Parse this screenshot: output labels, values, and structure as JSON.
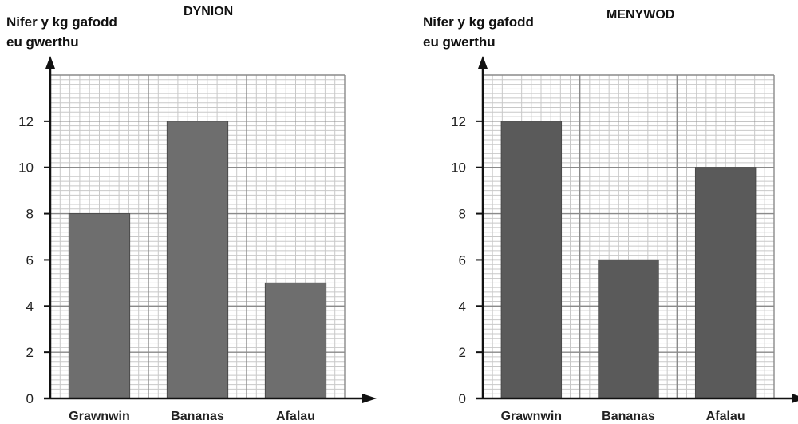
{
  "chart_data": [
    {
      "type": "bar",
      "title": "DYNION",
      "ylabel": [
        "Nifer y kg gafodd",
        "eu gwerthu"
      ],
      "categories": [
        "Grawnwin",
        "Bananas",
        "Afalau"
      ],
      "values": [
        8,
        12,
        5
      ],
      "yticks": [
        "0",
        "2",
        "4",
        "6",
        "8",
        "10",
        "12"
      ],
      "ylim": [
        0,
        14
      ],
      "grid": true,
      "bar_color": "#6e6e6e"
    },
    {
      "type": "bar",
      "title": "MENYWOD",
      "ylabel": [
        "Nifer y kg gafodd",
        "eu gwerthu"
      ],
      "categories": [
        "Grawnwin",
        "Bananas",
        "Afalau"
      ],
      "values": [
        12,
        6,
        10
      ],
      "yticks": [
        "0",
        "2",
        "4",
        "6",
        "8",
        "10",
        "12"
      ],
      "ylim": [
        0,
        14
      ],
      "grid": true,
      "bar_color": "#5a5a5a"
    }
  ]
}
